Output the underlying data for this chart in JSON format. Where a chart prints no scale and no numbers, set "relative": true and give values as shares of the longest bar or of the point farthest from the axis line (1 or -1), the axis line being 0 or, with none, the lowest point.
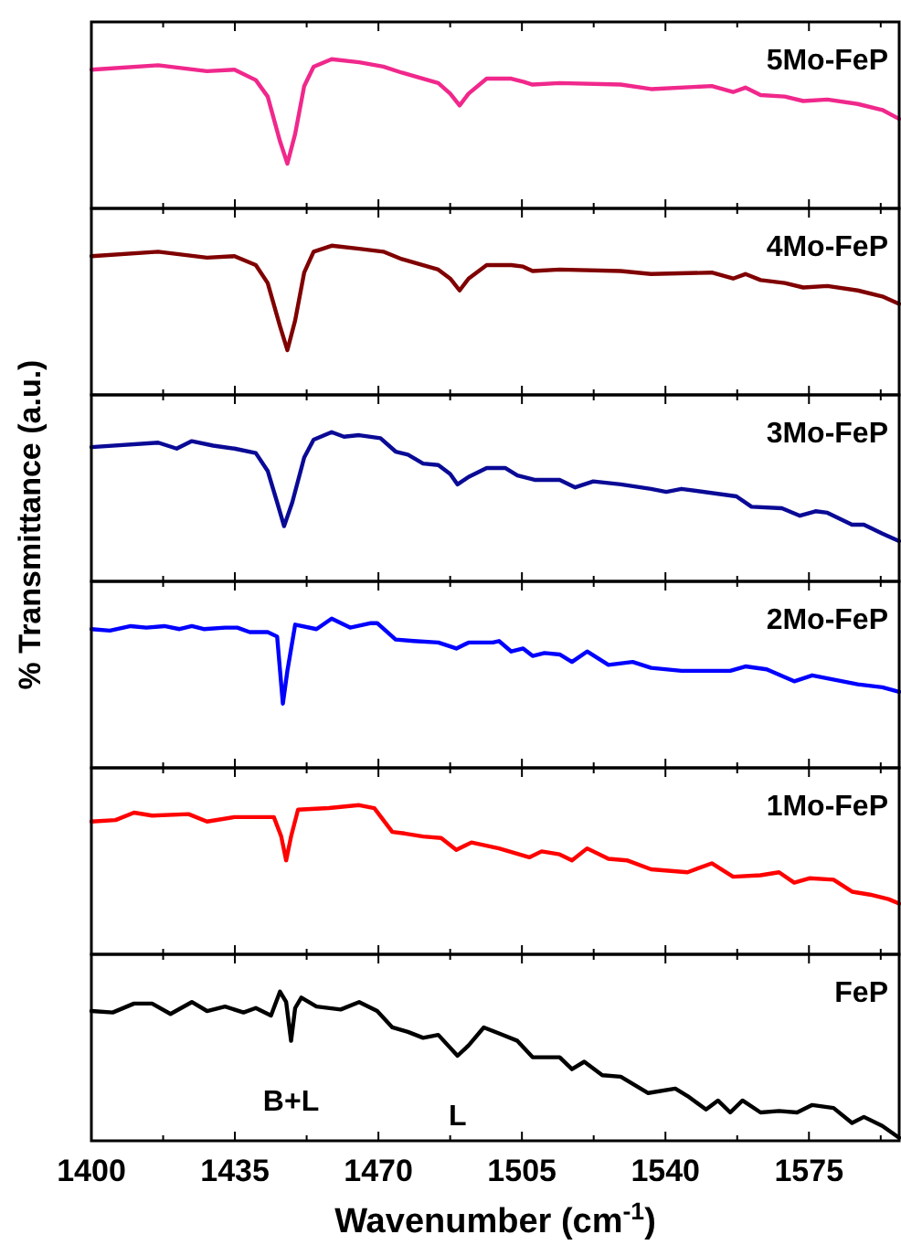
{
  "chart_data": [
    {
      "type": "line",
      "title": "5Mo-FeP",
      "relative": true,
      "tick_labels": false,
      "xlim": [
        1400,
        1597
      ],
      "xticks": [
        1400,
        {
          "value": 1417.5,
          "label": null
        },
        1435,
        {
          "value": 1452.5,
          "label": null
        },
        1470,
        {
          "value": 1487.5,
          "label": null
        },
        1505,
        {
          "value": 1522.5,
          "label": null
        },
        1540,
        {
          "value": 1557.5,
          "label": null
        },
        1575,
        {
          "value": 1592.5,
          "label": null
        }
      ],
      "series": [
        {
          "color": "#f0288c",
          "x": [
            1400,
            1416.3,
            1428.2,
            1434.9,
            1440.1,
            1443,
            1446,
            1447.8,
            1449.7,
            1451.9,
            1454.2,
            1458.6,
            1465.3,
            1471.2,
            1475.7,
            1484.6,
            1487.5,
            1489.8,
            1492,
            1496.4,
            1502.4,
            1505.3,
            1507.6,
            1514.2,
            1529.1,
            1536.5,
            1551.3,
            1556.5,
            1559.5,
            1563.2,
            1569.1,
            1573.6,
            1579.5,
            1586.9,
            1592.9,
            1597
          ],
          "values": [
            0.93,
            0.96,
            0.92,
            0.93,
            0.86,
            0.75,
            0.45,
            0.3,
            0.5,
            0.82,
            0.95,
            1,
            0.98,
            0.95,
            0.91,
            0.84,
            0.77,
            0.69,
            0.77,
            0.87,
            0.87,
            0.85,
            0.83,
            0.84,
            0.83,
            0.8,
            0.82,
            0.78,
            0.81,
            0.76,
            0.75,
            0.72,
            0.73,
            0.7,
            0.66,
            0.6
          ]
        }
      ]
    },
    {
      "type": "line",
      "title": "4Mo-FeP",
      "relative": true,
      "tick_labels": false,
      "xlim": [
        1400,
        1597
      ],
      "xticks": [
        1400,
        {
          "value": 1417.5,
          "label": null
        },
        1435,
        {
          "value": 1452.5,
          "label": null
        },
        1470,
        {
          "value": 1487.5,
          "label": null
        },
        1505,
        {
          "value": 1522.5,
          "label": null
        },
        1540,
        {
          "value": 1557.5,
          "label": null
        },
        1575,
        {
          "value": 1592.5,
          "label": null
        }
      ],
      "series": [
        {
          "color": "#800000",
          "x": [
            1400,
            1416.3,
            1428.2,
            1434.9,
            1440.1,
            1443,
            1446,
            1447.8,
            1449.7,
            1451.9,
            1454.2,
            1458.6,
            1465.3,
            1471.2,
            1475.7,
            1484.6,
            1487.5,
            1489.8,
            1492,
            1496.4,
            1502.4,
            1505.3,
            1507.6,
            1514.2,
            1529.1,
            1536.5,
            1551.3,
            1556.5,
            1559.5,
            1563.2,
            1569.1,
            1573.6,
            1579.5,
            1586.9,
            1592.9,
            1597
          ],
          "values": [
            0.93,
            0.96,
            0.92,
            0.93,
            0.87,
            0.75,
            0.46,
            0.3,
            0.5,
            0.82,
            0.96,
            1,
            0.98,
            0.96,
            0.91,
            0.84,
            0.78,
            0.7,
            0.78,
            0.87,
            0.87,
            0.86,
            0.83,
            0.84,
            0.83,
            0.81,
            0.82,
            0.78,
            0.81,
            0.77,
            0.75,
            0.72,
            0.73,
            0.7,
            0.66,
            0.61
          ]
        }
      ]
    },
    {
      "type": "line",
      "title": "3Mo-FeP",
      "ylabel": "% Transmittance (a.u.)",
      "relative": true,
      "tick_labels": false,
      "xlim": [
        1400,
        1597
      ],
      "xticks": [
        1400,
        {
          "value": 1417.5,
          "label": null
        },
        1435,
        {
          "value": 1452.5,
          "label": null
        },
        1470,
        {
          "value": 1487.5,
          "label": null
        },
        1505,
        {
          "value": 1522.5,
          "label": null
        },
        1540,
        {
          "value": 1557.5,
          "label": null
        },
        1575,
        {
          "value": 1592.5,
          "label": null
        }
      ],
      "series": [
        {
          "color": "#0a0a96",
          "x": [
            1400,
            1416.3,
            1420.8,
            1424.5,
            1429.7,
            1434.9,
            1440.1,
            1443,
            1445.3,
            1447,
            1449,
            1451.9,
            1454.2,
            1458.6,
            1461.6,
            1465.3,
            1470.5,
            1474.2,
            1477.2,
            1480.9,
            1484.6,
            1487.5,
            1489.3,
            1492,
            1496.4,
            1500.9,
            1503.9,
            1508.3,
            1514.2,
            1518,
            1522.4,
            1529.1,
            1536.5,
            1540.2,
            1543.9,
            1557.3,
            1561,
            1568.4,
            1572.8,
            1576.6,
            1579.5,
            1585.5,
            1588.4,
            1592.9,
            1597
          ],
          "values": [
            0.9,
            0.93,
            0.89,
            0.94,
            0.91,
            0.89,
            0.86,
            0.74,
            0.53,
            0.37,
            0.53,
            0.83,
            0.95,
            1,
            0.97,
            0.98,
            0.96,
            0.87,
            0.85,
            0.79,
            0.78,
            0.72,
            0.65,
            0.7,
            0.76,
            0.76,
            0.71,
            0.68,
            0.68,
            0.63,
            0.67,
            0.65,
            0.62,
            0.6,
            0.62,
            0.57,
            0.5,
            0.49,
            0.44,
            0.47,
            0.46,
            0.38,
            0.38,
            0.32,
            0.27
          ]
        }
      ]
    },
    {
      "type": "line",
      "title": "2Mo-FeP",
      "relative": true,
      "tick_labels": false,
      "xlim": [
        1400,
        1597
      ],
      "xticks": [
        1400,
        {
          "value": 1417.5,
          "label": null
        },
        1435,
        {
          "value": 1452.5,
          "label": null
        },
        1470,
        {
          "value": 1487.5,
          "label": null
        },
        1505,
        {
          "value": 1522.5,
          "label": null
        },
        1540,
        {
          "value": 1557.5,
          "label": null
        },
        1575,
        {
          "value": 1592.5,
          "label": null
        }
      ],
      "series": [
        {
          "color": "#0000ff",
          "x": [
            1400,
            1404.5,
            1409.6,
            1413.4,
            1417.8,
            1421.5,
            1424.5,
            1427.4,
            1432.6,
            1435.6,
            1438.6,
            1443,
            1445.3,
            1446.7,
            1447.8,
            1449.7,
            1454.9,
            1458.6,
            1463.1,
            1468.2,
            1469.7,
            1474.2,
            1478.6,
            1484.6,
            1489,
            1492,
            1497.9,
            1499.4,
            1502.4,
            1505.3,
            1507.6,
            1510.5,
            1514.2,
            1517.2,
            1520.9,
            1526.1,
            1532,
            1536.5,
            1543.9,
            1551.3,
            1555.8,
            1559.5,
            1564.7,
            1571.4,
            1575.8,
            1579.5,
            1586.9,
            1592.9,
            1597
          ],
          "values": [
            0.93,
            0.92,
            0.95,
            0.94,
            0.95,
            0.93,
            0.95,
            0.93,
            0.94,
            0.94,
            0.91,
            0.91,
            0.88,
            0.43,
            0.65,
            0.96,
            0.93,
            1,
            0.94,
            0.97,
            0.97,
            0.86,
            0.85,
            0.84,
            0.8,
            0.84,
            0.84,
            0.85,
            0.78,
            0.8,
            0.75,
            0.77,
            0.76,
            0.71,
            0.78,
            0.69,
            0.71,
            0.67,
            0.65,
            0.65,
            0.65,
            0.68,
            0.66,
            0.58,
            0.62,
            0.6,
            0.56,
            0.54,
            0.51
          ]
        }
      ]
    },
    {
      "type": "line",
      "title": "1Mo-FeP",
      "relative": true,
      "tick_labels": false,
      "xlim": [
        1400,
        1597
      ],
      "xticks": [
        1400,
        {
          "value": 1417.5,
          "label": null
        },
        1435,
        {
          "value": 1452.5,
          "label": null
        },
        1470,
        {
          "value": 1487.5,
          "label": null
        },
        1505,
        {
          "value": 1522.5,
          "label": null
        },
        1540,
        {
          "value": 1557.5,
          "label": null
        },
        1575,
        {
          "value": 1592.5,
          "label": null
        }
      ],
      "series": [
        {
          "color": "#ff0000",
          "x": [
            1400,
            1405.9,
            1410.4,
            1414.8,
            1423.7,
            1428.2,
            1434.9,
            1444.5,
            1446.3,
            1447.5,
            1448.7,
            1450.4,
            1457.9,
            1465.3,
            1469,
            1473.4,
            1476.4,
            1480.9,
            1485.3,
            1489,
            1492.7,
            1499.4,
            1506.8,
            1509.8,
            1514.2,
            1517.2,
            1520.9,
            1526.1,
            1530.6,
            1536.5,
            1545.4,
            1551.3,
            1556.5,
            1563.2,
            1567.7,
            1571.4,
            1575.1,
            1581,
            1585.5,
            1589.9,
            1594.4,
            1597
          ],
          "values": [
            0.89,
            0.9,
            0.95,
            0.93,
            0.94,
            0.89,
            0.92,
            0.92,
            0.79,
            0.63,
            0.79,
            0.97,
            0.98,
            1,
            0.98,
            0.82,
            0.81,
            0.79,
            0.78,
            0.7,
            0.75,
            0.71,
            0.65,
            0.69,
            0.67,
            0.63,
            0.71,
            0.64,
            0.63,
            0.57,
            0.55,
            0.61,
            0.52,
            0.53,
            0.55,
            0.48,
            0.51,
            0.5,
            0.42,
            0.4,
            0.37,
            0.34
          ]
        }
      ]
    },
    {
      "type": "line",
      "title": "FeP",
      "xlabel": "Wavenumber (cm$^{-1}$)",
      "relative": true,
      "tick_labels": "x",
      "xlim": [
        1400,
        1597
      ],
      "xticks": [
        1400,
        {
          "value": 1417.5,
          "label": null
        },
        1435,
        {
          "value": 1452.5,
          "label": null
        },
        1470,
        {
          "value": 1487.5,
          "label": null
        },
        1505,
        {
          "value": 1522.5,
          "label": null
        },
        1540,
        {
          "value": 1557.5,
          "label": null
        },
        1575,
        {
          "value": 1592.5,
          "label": null
        }
      ],
      "annotations": [
        {
          "text": "B+L",
          "x": 1448.7,
          "y": 0.67
        },
        {
          "text": "L",
          "x": 1489.3,
          "y": 0.57
        }
      ],
      "series": [
        {
          "color": "#000000",
          "x": [
            1400,
            1405.2,
            1410.4,
            1414.8,
            1419.3,
            1424.5,
            1428.2,
            1432.6,
            1437.1,
            1440.1,
            1443.8,
            1446,
            1447.5,
            1448.7,
            1449.7,
            1451.2,
            1454.9,
            1460.8,
            1465.3,
            1469.7,
            1473.4,
            1477.2,
            1480.9,
            1484.6,
            1489.3,
            1492,
            1495.7,
            1499.4,
            1503.9,
            1507.6,
            1511.3,
            1514.2,
            1517.2,
            1520.2,
            1524.6,
            1529.1,
            1535.8,
            1542.4,
            1545.4,
            1549.9,
            1552.8,
            1555.8,
            1558.8,
            1563.2,
            1567.7,
            1572.1,
            1575.8,
            1581,
            1585.5,
            1588.4,
            1592.9,
            1597
          ],
          "values": [
            0.87,
            0.86,
            0.92,
            0.92,
            0.85,
            0.93,
            0.87,
            0.9,
            0.86,
            0.89,
            0.84,
            1,
            0.93,
            0.67,
            0.89,
            0.96,
            0.9,
            0.88,
            0.93,
            0.87,
            0.76,
            0.73,
            0.69,
            0.71,
            0.57,
            0.64,
            0.76,
            0.72,
            0.67,
            0.56,
            0.56,
            0.56,
            0.48,
            0.53,
            0.44,
            0.43,
            0.32,
            0.35,
            0.3,
            0.21,
            0.27,
            0.19,
            0.27,
            0.19,
            0.2,
            0.19,
            0.24,
            0.22,
            0.12,
            0.16,
            0.1,
            0.02
          ]
        }
      ]
    }
  ]
}
